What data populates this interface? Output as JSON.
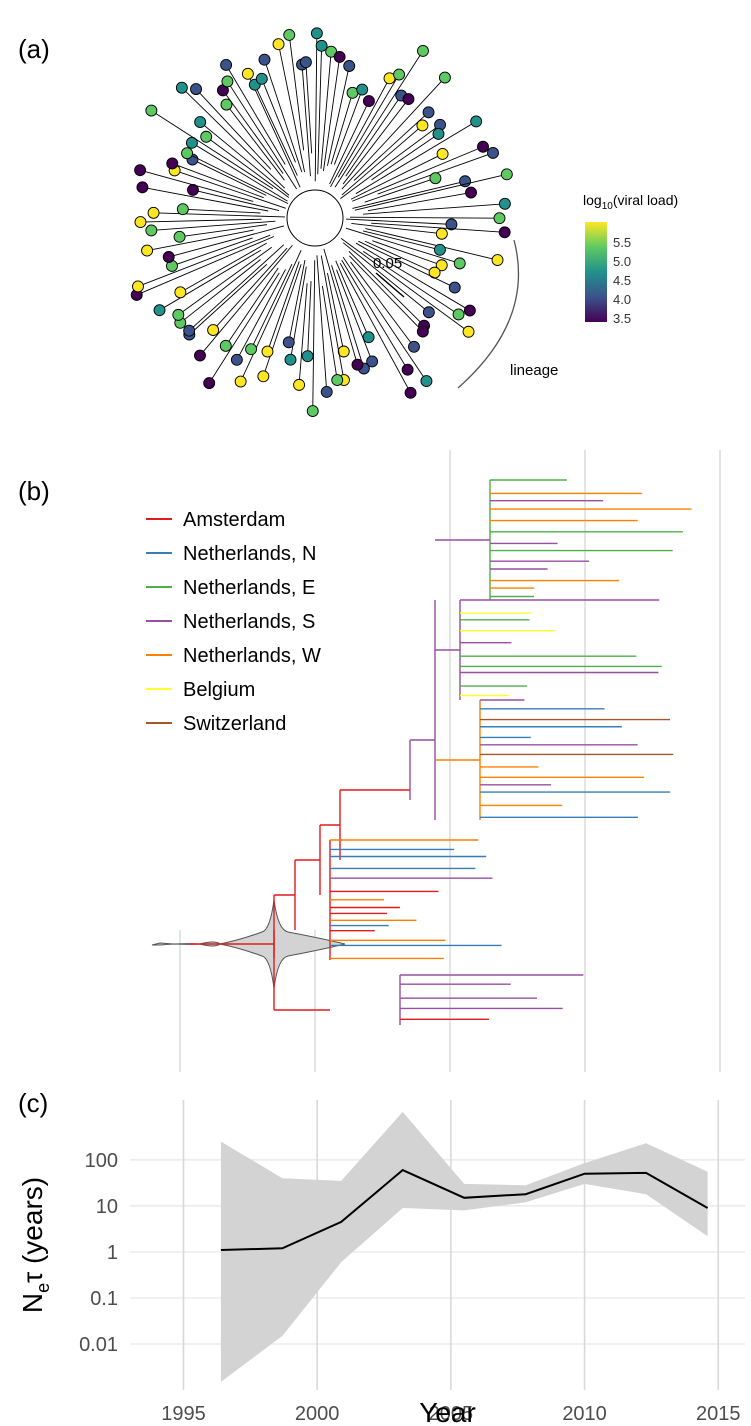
{
  "panels": {
    "a": "(a)",
    "b": "(b)",
    "c": "(c)"
  },
  "panel_a": {
    "scale_bar_label": "0.05",
    "lineage_label": "lineage",
    "colorbar": {
      "title_main": "log",
      "title_sub": "10",
      "title_rest": "(viral load)",
      "ticks": [
        "5.5",
        "5.0",
        "4.5",
        "4.0",
        "3.5"
      ],
      "palette": [
        "#fde725",
        "#5ec962",
        "#21918c",
        "#3b528b",
        "#440154"
      ]
    }
  },
  "panel_b": {
    "legend": [
      {
        "label": "Amsterdam",
        "color": "#e41a1c"
      },
      {
        "label": "Netherlands, N",
        "color": "#377eb8"
      },
      {
        "label": "Netherlands, E",
        "color": "#4daf4a"
      },
      {
        "label": "Netherlands, S",
        "color": "#984ea3"
      },
      {
        "label": "Netherlands, W",
        "color": "#ff7f00"
      },
      {
        "label": "Belgium",
        "color": "#ffff33"
      },
      {
        "label": "Switzerland",
        "color": "#a65628"
      }
    ]
  },
  "chart_data": {
    "type": "area",
    "xlabel": "Year",
    "ylabel_main": "N",
    "ylabel_sub": "e",
    "ylabel_rest": "τ (years)",
    "yscale": "log",
    "xlim": [
      1993,
      2016
    ],
    "ylim": [
      0.001,
      2000
    ],
    "x_ticks": [
      1995,
      2000,
      2005,
      2010,
      2015
    ],
    "x_tick_labels": [
      "1995",
      "2000",
      "2005",
      "2010",
      "2015"
    ],
    "y_ticks": [
      0.01,
      0.1,
      1,
      10,
      100
    ],
    "y_tick_labels": [
      "0.01",
      "0.1",
      "1",
      "10",
      "100"
    ],
    "series": [
      {
        "x": [
          1996.4,
          1998.7,
          2000.9,
          2003.2,
          2005.5,
          2007.8,
          2010.0,
          2012.3,
          2014.6
        ],
        "median": [
          1.1,
          1.2,
          4.5,
          60,
          15,
          18,
          50,
          52,
          9
        ],
        "lower": [
          0.0015,
          0.015,
          0.6,
          9,
          8,
          12,
          30,
          18,
          2.2
        ],
        "upper": [
          250,
          40,
          35,
          1100,
          30,
          28,
          85,
          230,
          55
        ]
      }
    ],
    "colors": {
      "band": "#d3d3d3",
      "line": "#000000",
      "grid": "#dddddd"
    }
  }
}
